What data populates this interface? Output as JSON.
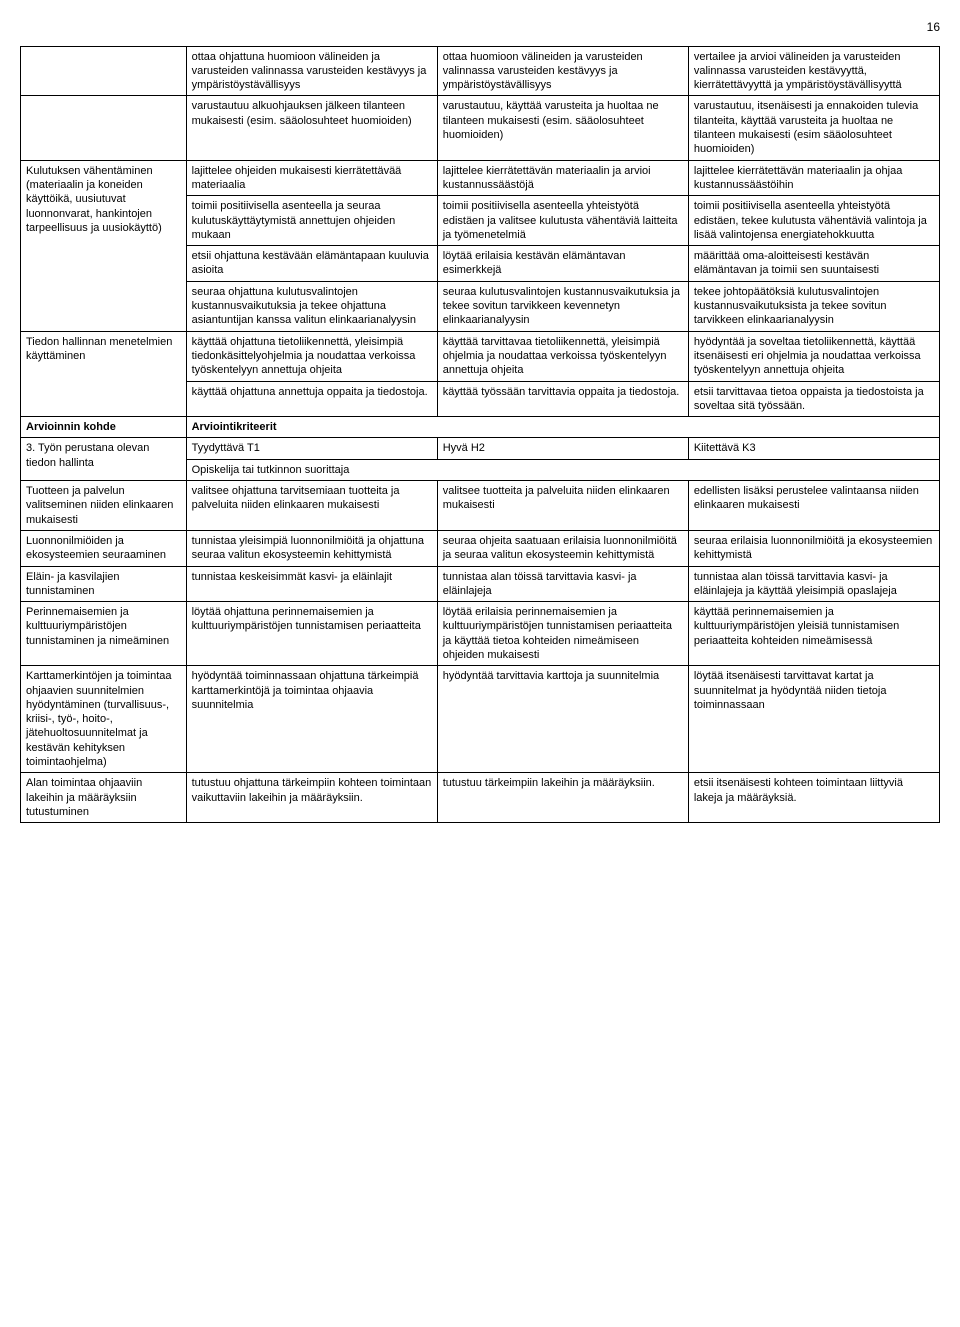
{
  "pageNumber": "16",
  "rows": [
    {
      "c0": "",
      "c1": "ottaa ohjattuna huomioon välineiden ja varusteiden valinnassa varusteiden kestävyys ja ympäristöystävällisyys",
      "c2": "ottaa huomioon välineiden ja varusteiden valinnassa varusteiden kestävyys ja ympäristöystävällisyys",
      "c3": "vertailee ja arvioi välineiden ja varusteiden valinnassa varusteiden kestävyyttä, kierrätettävyyttä ja ympäristöystävällisyyttä"
    },
    {
      "c0": "",
      "c1": "varustautuu alkuohjauksen jälkeen tilanteen mukaisesti (esim. sääolosuhteet huomioiden)",
      "c2": "varustautuu, käyttää varusteita ja huoltaa ne tilanteen mukaisesti (esim. sääolosuhteet huomioiden)",
      "c3": "varustautuu, itsenäisesti ja ennakoiden tulevia tilanteita, käyttää varusteita ja huoltaa ne tilanteen mukaisesti (esim sääolosuhteet huomioiden)"
    },
    {
      "c0": "Kulutuksen vähentäminen (materiaalin ja koneiden käyttöikä, uusiutuvat luonnonvarat, hankintojen tarpeellisuus ja uusiokäyttö)",
      "c1": "lajittelee ohjeiden mukaisesti kierrätettävää materiaalia",
      "c2": "lajittelee kierrätettävän materiaalin ja arvioi kustannussäästöjä",
      "c3": "lajittelee kierrätettävän materiaalin ja ohjaa kustannussäästöihin",
      "rs": 4
    },
    {
      "c1": "toimii positiivisella asenteella ja seuraa kulutuskäyttäytymistä annettujen ohjeiden mukaan",
      "c2": "toimii positiivisella asenteella yhteistyötä edistäen ja valitsee kulutusta vähentäviä laitteita ja työmenetelmiä",
      "c3": "toimii positiivisella asenteella yhteistyötä edistäen, tekee kulutusta vähentäviä valintoja ja lisää valintojensa energiatehokkuutta"
    },
    {
      "c1": "etsii ohjattuna kestävään elämäntapaan kuuluvia asioita",
      "c2": "löytää erilaisia kestävän elämäntavan esimerkkejä",
      "c3": "määrittää oma-aloitteisesti kestävän elämäntavan ja toimii sen suuntaisesti"
    },
    {
      "c1": "seuraa ohjattuna kulutusvalintojen kustannusvaikutuksia ja tekee ohjattuna asiantuntijan kanssa valitun elinkaarianalyysin",
      "c2": "seuraa kulutusvalintojen kustannusvaikutuksia ja tekee sovitun tarvikkeen kevennetyn elinkaarianalyysin",
      "c3": "tekee johtopäätöksiä kulutusvalintojen kustannusvaikutuksista ja tekee sovitun tarvikkeen elinkaarianalyysin"
    },
    {
      "c0": "Tiedon hallinnan menetelmien käyttäminen",
      "c1": "käyttää ohjattuna tietoliikennettä, yleisimpiä tiedonkäsittelyohjelmia ja noudattaa verkoissa työskentelyyn annettuja ohjeita",
      "c2": "käyttää tarvittavaa tietoliikennettä, yleisimpiä ohjelmia ja noudattaa verkoissa työskentelyyn annettuja ohjeita",
      "c3": "hyödyntää ja soveltaa tietoliikennettä, käyttää itsenäisesti eri ohjelmia ja noudattaa verkoissa työskentelyyn annettuja ohjeita",
      "rs": 2
    },
    {
      "c1": "käyttää ohjattuna annettuja oppaita ja tiedostoja.",
      "c2": "käyttää työssään tarvittavia oppaita ja tiedostoja.",
      "c3": "etsii tarvittavaa tietoa oppaista ja tiedostoista ja soveltaa sitä työssään."
    },
    {
      "c0": "Arvioinnin kohde",
      "c1": "Arviointikriteerit",
      "c1cs": 3,
      "bold": true
    },
    {
      "c0": "3. Työn perustana olevan tiedon hallinta",
      "c1": "Tyydyttävä T1",
      "c2": "Hyvä H2",
      "c3": "Kiitettävä K3",
      "rs": 2
    },
    {
      "c1": "Opiskelija tai tutkinnon suorittaja",
      "c1cs": 3
    },
    {
      "c0": "Tuotteen ja palvelun valitseminen niiden elinkaaren mukaisesti",
      "c1": "valitsee ohjattuna tarvitsemiaan tuotteita ja palveluita niiden elinkaaren mukaisesti",
      "c2": "valitsee tuotteita ja palveluita niiden elinkaaren mukaisesti",
      "c3": "edellisten lisäksi perustelee valintaansa niiden elinkaaren mukaisesti"
    },
    {
      "c0": "Luonnonilmiöiden ja ekosysteemien seuraaminen",
      "c1": "tunnistaa yleisimpiä luonnonilmiöitä ja ohjattuna seuraa valitun ekosysteemin kehittymistä",
      "c2": "seuraa ohjeita saatuaan erilaisia luonnonilmiöitä ja seuraa valitun ekosysteemin kehittymistä",
      "c3": "seuraa erilaisia luonnonilmiöitä ja ekosysteemien kehittymistä"
    },
    {
      "c0": "Eläin- ja kasvilajien tunnistaminen",
      "c1": "tunnistaa keskeisimmät kasvi- ja eläinlajit",
      "c2": "tunnistaa alan töissä tarvittavia kasvi- ja eläinlajeja",
      "c3": "tunnistaa alan töissä tarvittavia kasvi- ja eläinlajeja ja käyttää yleisimpiä opaslajeja"
    },
    {
      "c0": "Perinnemaisemien ja kulttuuriympäristöjen tunnistaminen ja nimeäminen",
      "c1": "löytää ohjattuna perinnemaisemien ja kulttuuriympäristöjen tunnistamisen periaatteita",
      "c2": "löytää erilaisia perinnemaisemien ja kulttuuriympäristöjen tunnistamisen periaatteita ja käyttää tietoa kohteiden nimeämiseen ohjeiden mukaisesti",
      "c3": "käyttää perinnemaisemien ja kulttuuriympäristöjen yleisiä tunnistamisen periaatteita kohteiden nimeämisessä"
    },
    {
      "c0": "Karttamerkintöjen ja toimintaa ohjaavien suunnitelmien hyödyntäminen (turvallisuus-, kriisi-, työ-, hoito-, jätehuoltosuunnitelmat ja kestävän kehityksen toimintaohjelma)",
      "c1": "hyödyntää toiminnassaan ohjattuna tärkeimpiä karttamerkintöjä ja toimintaa ohjaavia suunnitelmia",
      "c2": "hyödyntää tarvittavia karttoja ja suunnitelmia",
      "c3": "löytää itsenäisesti tarvittavat kartat ja suunnitelmat ja hyödyntää niiden tietoja toiminnassaan"
    },
    {
      "c0": "Alan toimintaa ohjaaviin lakeihin ja määräyksiin tutustuminen",
      "c1": "tutustuu ohjattuna tärkeimpiin kohteen toimintaan vaikuttaviin lakeihin ja määräyksiin.",
      "c2": "tutustuu tärkeimpiin lakeihin ja määräyksiin.",
      "c3": "etsii itsenäisesti kohteen toimintaan liittyviä lakeja ja määräyksiä."
    }
  ]
}
